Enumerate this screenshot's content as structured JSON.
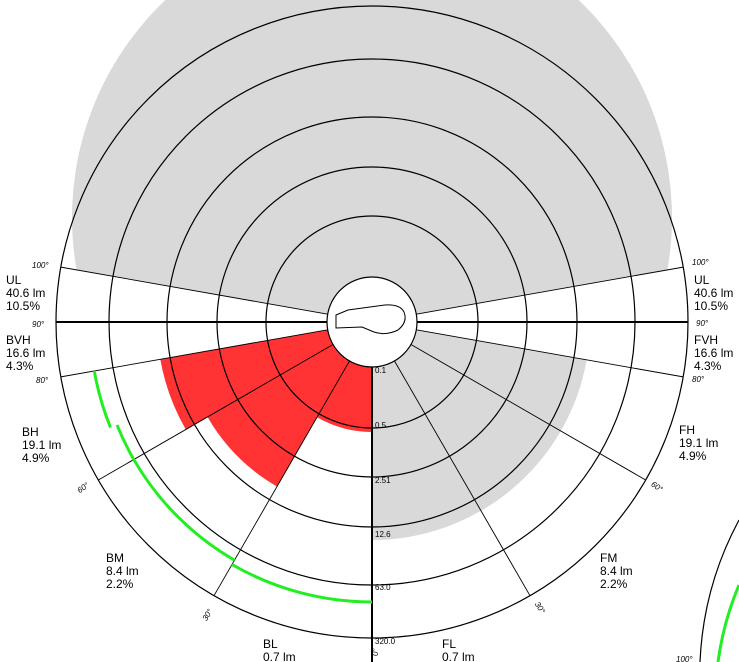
{
  "zones_left": [
    {
      "code": "UL",
      "lumens": "40.6 lm",
      "percent": "10.5%"
    },
    {
      "code": "BVH",
      "lumens": "16.6 lm",
      "percent": "4.3%"
    },
    {
      "code": "BH",
      "lumens": "19.1 lm",
      "percent": "4.9%"
    },
    {
      "code": "BM",
      "lumens": "8.4 lm",
      "percent": "2.2%"
    },
    {
      "code": "BL",
      "lumens": "0.7 lm",
      "percent": ""
    }
  ],
  "zones_right": [
    {
      "code": "UL",
      "lumens": "40.6 lm",
      "percent": "10.5%"
    },
    {
      "code": "FVH",
      "lumens": "16.6 lm",
      "percent": "4.3%"
    },
    {
      "code": "FH",
      "lumens": "19.1 lm",
      "percent": "4.9%"
    },
    {
      "code": "FM",
      "lumens": "8.4 lm",
      "percent": "2.2%"
    },
    {
      "code": "FL",
      "lumens": "0.7 lm",
      "percent": ""
    }
  ],
  "angle_labels": {
    "a100": "100°",
    "a90": "90°",
    "a80": "80°",
    "a60": "60°",
    "a30": "30°",
    "a0": "0°"
  },
  "ring_labels": [
    "0.1",
    "0.5",
    "2.51",
    "12.6",
    "63.0",
    "320.0"
  ],
  "colors": {
    "uplight_fill": "#d9d9d9",
    "backlight_fill": "#ff3333",
    "frontlight_fill": "#d9d9d9",
    "limit_arc": "#22ee22",
    "lines": "#000000"
  }
}
